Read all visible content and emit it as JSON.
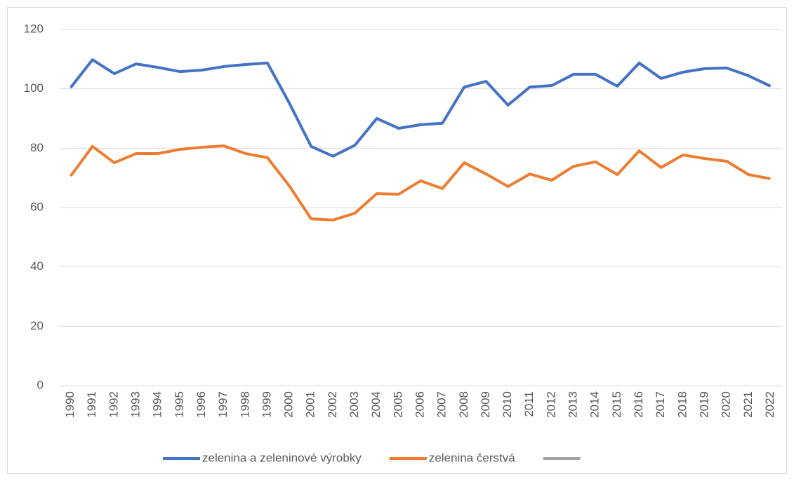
{
  "chart_data": {
    "type": "line",
    "categories": [
      "1990",
      "1991",
      "1992",
      "1993",
      "1994",
      "1995",
      "1996",
      "1997",
      "1998",
      "1999",
      "2000",
      "2001",
      "2002",
      "2003",
      "2004",
      "2005",
      "2006",
      "2007",
      "2008",
      "2009",
      "2010",
      "2011",
      "2012",
      "2013",
      "2014",
      "2015",
      "2016",
      "2017",
      "2018",
      "2019",
      "2020",
      "2021",
      "2022"
    ],
    "series": [
      {
        "name": "zelenina a zeleninové výrobky",
        "color": "#4472c4",
        "values": [
          100.4,
          109.8,
          105.1,
          108.4,
          107.2,
          105.8,
          106.3,
          107.5,
          108.2,
          108.7,
          95.2,
          80.6,
          77.3,
          81.0,
          90.0,
          86.7,
          87.9,
          88.4,
          100.6,
          102.5,
          94.5,
          100.6,
          101.1,
          104.9,
          104.9,
          100.9,
          108.7,
          103.5,
          105.6,
          106.8,
          107.0,
          104.4,
          100.9
        ]
      },
      {
        "name": "zelenina čerstvá",
        "color": "#ed7d31",
        "values": [
          70.6,
          80.6,
          75.1,
          78.2,
          78.2,
          79.6,
          80.3,
          80.8,
          78.2,
          76.8,
          67.3,
          56.2,
          55.8,
          58.1,
          64.7,
          64.5,
          69.0,
          66.4,
          75.1,
          71.3,
          67.1,
          71.3,
          69.2,
          73.9,
          75.4,
          71.1,
          79.1,
          73.5,
          77.7,
          76.5,
          75.6,
          71.1,
          69.7
        ]
      },
      {
        "color": "#a5a5a5",
        "values": [
          null,
          null,
          null,
          null,
          null,
          null,
          null,
          null,
          null,
          null,
          null,
          null,
          null,
          null,
          null,
          null,
          null,
          null,
          null,
          null,
          null,
          null,
          null,
          null,
          null,
          null,
          null,
          null,
          null,
          null,
          null,
          null,
          null
        ]
      }
    ],
    "ylim": [
      0,
      120
    ],
    "yticks": [
      0,
      20,
      40,
      60,
      80,
      100,
      120
    ],
    "grid": true,
    "legend": "bottom"
  }
}
